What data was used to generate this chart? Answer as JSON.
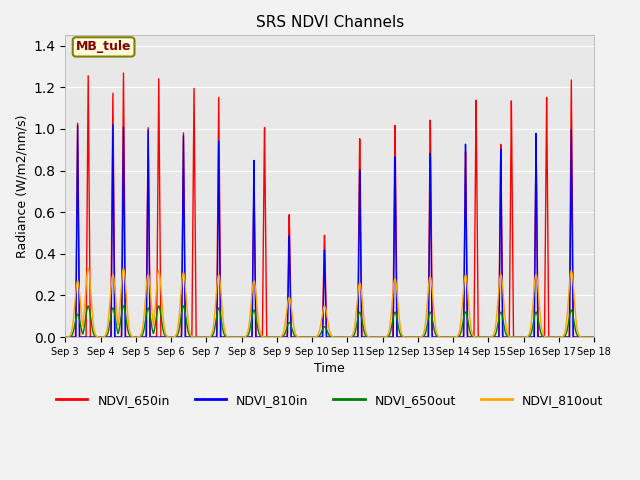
{
  "title": "SRS NDVI Channels",
  "xlabel": "Time",
  "ylabel": "Radiance (W/m2/nm/s)",
  "ylim": [
    0,
    1.45
  ],
  "annotation": "MB_tule",
  "legend_labels": [
    "NDVI_650in",
    "NDVI_810in",
    "NDVI_650out",
    "NDVI_810out"
  ],
  "line_colors": [
    "red",
    "blue",
    "green",
    "orange"
  ],
  "xtick_labels": [
    "Sep 3",
    "Sep 4",
    "Sep 5",
    "Sep 6",
    "Sep 7",
    "Sep 8",
    "Sep 9",
    "Sep 10",
    "Sep 11",
    "Sep 12",
    "Sep 13",
    "Sep 14",
    "Sep 15",
    "Sep 16",
    "Sep 17",
    "Sep 18"
  ],
  "background_color": "#e8e8e8",
  "fig_background": "#f2f2f2",
  "spikes": [
    {
      "day": 0,
      "sub": 0,
      "p650in": 1.03,
      "p810in": 1.02,
      "p650out": 0.11,
      "p810out": 0.27
    },
    {
      "day": 0,
      "sub": 1,
      "p650in": 1.26,
      "p810in": 0.0,
      "p650out": 0.15,
      "p810out": 0.33
    },
    {
      "day": 1,
      "sub": 0,
      "p650in": 1.18,
      "p810in": 1.03,
      "p650out": 0.14,
      "p810out": 0.3
    },
    {
      "day": 1,
      "sub": 1,
      "p650in": 1.28,
      "p810in": 1.02,
      "p650out": 0.15,
      "p810out": 0.33
    },
    {
      "day": 2,
      "sub": 0,
      "p650in": 1.02,
      "p810in": 1.01,
      "p650out": 0.14,
      "p810out": 0.3
    },
    {
      "day": 2,
      "sub": 1,
      "p650in": 1.26,
      "p810in": 0.0,
      "p650out": 0.15,
      "p810out": 0.32
    },
    {
      "day": 3,
      "sub": 0,
      "p650in": 1.0,
      "p810in": 0.99,
      "p650out": 0.15,
      "p810out": 0.31
    },
    {
      "day": 3,
      "sub": 1,
      "p650in": 1.22,
      "p810in": 0.0,
      "p650out": 0.0,
      "p810out": 0.0
    },
    {
      "day": 4,
      "sub": 0,
      "p650in": 1.18,
      "p810in": 0.97,
      "p650out": 0.14,
      "p810out": 0.3
    },
    {
      "day": 4,
      "sub": 1,
      "p650in": 0.0,
      "p810in": 0.0,
      "p650out": 0.0,
      "p810out": 0.0
    },
    {
      "day": 5,
      "sub": 0,
      "p650in": 0.73,
      "p810in": 0.88,
      "p650out": 0.13,
      "p810out": 0.27
    },
    {
      "day": 5,
      "sub": 1,
      "p650in": 1.04,
      "p810in": 0.0,
      "p650out": 0.0,
      "p810out": 0.0
    },
    {
      "day": 6,
      "sub": 0,
      "p650in": 0.61,
      "p810in": 0.51,
      "p650out": 0.07,
      "p810out": 0.19
    },
    {
      "day": 6,
      "sub": 1,
      "p650in": 0.0,
      "p810in": 0.0,
      "p650out": 0.0,
      "p810out": 0.0
    },
    {
      "day": 7,
      "sub": 0,
      "p650in": 0.51,
      "p810in": 0.44,
      "p650out": 0.05,
      "p810out": 0.15
    },
    {
      "day": 7,
      "sub": 1,
      "p650in": 0.0,
      "p810in": 0.0,
      "p650out": 0.0,
      "p810out": 0.0
    },
    {
      "day": 8,
      "sub": 0,
      "p650in": 0.99,
      "p810in": 0.84,
      "p650out": 0.12,
      "p810out": 0.26
    },
    {
      "day": 8,
      "sub": 1,
      "p650in": 0.0,
      "p810in": 0.0,
      "p650out": 0.0,
      "p810out": 0.0
    },
    {
      "day": 9,
      "sub": 0,
      "p650in": 1.05,
      "p810in": 0.9,
      "p650out": 0.12,
      "p810out": 0.28
    },
    {
      "day": 9,
      "sub": 1,
      "p650in": 0.0,
      "p810in": 0.0,
      "p650out": 0.0,
      "p810out": 0.0
    },
    {
      "day": 10,
      "sub": 0,
      "p650in": 1.07,
      "p810in": 0.91,
      "p650out": 0.12,
      "p810out": 0.29
    },
    {
      "day": 10,
      "sub": 1,
      "p650in": 0.0,
      "p810in": 0.0,
      "p650out": 0.0,
      "p810out": 0.0
    },
    {
      "day": 11,
      "sub": 0,
      "p650in": 0.91,
      "p810in": 0.95,
      "p650out": 0.12,
      "p810out": 0.3
    },
    {
      "day": 11,
      "sub": 1,
      "p650in": 1.16,
      "p810in": 0.0,
      "p650out": 0.0,
      "p810out": 0.0
    },
    {
      "day": 12,
      "sub": 0,
      "p650in": 0.94,
      "p810in": 0.92,
      "p650out": 0.12,
      "p810out": 0.3
    },
    {
      "day": 12,
      "sub": 1,
      "p650in": 1.15,
      "p810in": 0.0,
      "p650out": 0.0,
      "p810out": 0.0
    },
    {
      "day": 13,
      "sub": 0,
      "p650in": 0.94,
      "p810in": 0.99,
      "p650out": 0.12,
      "p810out": 0.3
    },
    {
      "day": 13,
      "sub": 1,
      "p650in": 1.16,
      "p810in": 0.0,
      "p650out": 0.0,
      "p810out": 0.0
    },
    {
      "day": 14,
      "sub": 0,
      "p650in": 1.24,
      "p810in": 1.0,
      "p650out": 0.13,
      "p810out": 0.32
    },
    {
      "day": 14,
      "sub": 1,
      "p650in": 0.0,
      "p810in": 0.0,
      "p650out": 0.0,
      "p810out": 0.0
    }
  ]
}
